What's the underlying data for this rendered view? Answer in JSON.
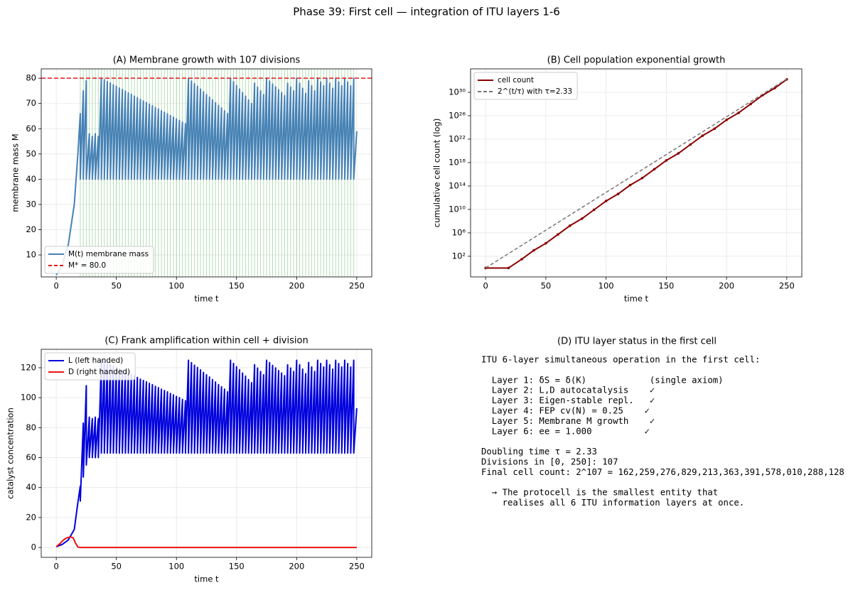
{
  "title": "Phase 39: First cell — integration of ITU layers 1-6",
  "chart_data": [
    {
      "type": "line",
      "title": "(A) Membrane growth with 107 divisions",
      "xlabel": "time t",
      "ylabel": "membrane mass M",
      "xlim": [
        -12.5,
        262.5
      ],
      "ylim": [
        1.3,
        83.7
      ],
      "xticks": [
        0,
        50,
        100,
        150,
        200,
        250
      ],
      "yticks": [
        10,
        20,
        30,
        40,
        50,
        60,
        70,
        80
      ],
      "grid": true,
      "legend": "lower left",
      "division_line_color": "#2ca02c",
      "series": [
        {
          "name": "M(t) membrane mass",
          "color": "#4682b4",
          "x": [
            0,
            5,
            10,
            15,
            18,
            20,
            20,
            22.5,
            22.5,
            25,
            25,
            27.5,
            27.5,
            30,
            30,
            32.5,
            32.5,
            35,
            35,
            37.5,
            37.5,
            40,
            40,
            42.5,
            42.5,
            45,
            45,
            47.5,
            47.5,
            50,
            50,
            52.5,
            52.5,
            55,
            55,
            57.5,
            57.5,
            60,
            60,
            62.5,
            62.5,
            65,
            65,
            67.5,
            67.5,
            70,
            70,
            72.5,
            72.5,
            75,
            75,
            77.5,
            77.5,
            80,
            80,
            82.5,
            82.5,
            85,
            85,
            87.5,
            87.5,
            90,
            90,
            92.5,
            92.5,
            95,
            95,
            97.5,
            97.5,
            100,
            100,
            102.5,
            102.5,
            105,
            105,
            107.5,
            107.5,
            110,
            110,
            112.5,
            112.5,
            115,
            115,
            117.5,
            117.5,
            120,
            120,
            122.5,
            122.5,
            125,
            125,
            127.5,
            127.5,
            130,
            130,
            132.5,
            132.5,
            135,
            135,
            137.5,
            137.5,
            140,
            140,
            142.5,
            142.5,
            145,
            145,
            147.5,
            147.5,
            150,
            150,
            152.5,
            152.5,
            155,
            155,
            157.5,
            157.5,
            160,
            160,
            162.5,
            162.5,
            165,
            165,
            167.5,
            167.5,
            170,
            170,
            172.5,
            172.5,
            175,
            175,
            177.5,
            177.5,
            180,
            180,
            182.5,
            182.5,
            185,
            185,
            187.5,
            187.5,
            190,
            190,
            192.5,
            192.5,
            195,
            195,
            197.5,
            197.5,
            200,
            200,
            202.5,
            202.5,
            205,
            205,
            207.5,
            207.5,
            210,
            210,
            212.5,
            212.5,
            215,
            215,
            217.5,
            217.5,
            220,
            220,
            222.5,
            222.5,
            225,
            225,
            227.5,
            227.5,
            230,
            230,
            232.5,
            232.5,
            235,
            235,
            237.5,
            237.5,
            240,
            240,
            242.5,
            242.5,
            245,
            245,
            247.5,
            247.5,
            250
          ],
          "values": [
            2,
            6,
            14,
            30,
            50,
            66,
            40,
            75,
            40,
            79,
            40,
            58,
            40,
            57,
            40,
            58,
            40,
            57,
            40,
            80,
            40,
            79.4,
            40,
            78.7,
            40,
            78.1,
            40,
            77.4,
            40,
            76.8,
            40,
            76.1,
            40,
            75.5,
            40,
            74.9,
            40,
            74.2,
            40,
            73.6,
            40,
            72.9,
            40,
            72.3,
            40,
            71.6,
            40,
            71.0,
            40,
            70.4,
            40,
            69.7,
            40,
            69.1,
            40,
            68.4,
            40,
            67.8,
            40,
            67.1,
            40,
            66.5,
            40,
            65.9,
            40,
            65.2,
            40,
            64.6,
            40,
            63.9,
            40,
            63.3,
            40,
            62.6,
            40,
            62.0,
            40,
            80,
            40,
            78.9,
            40,
            77.8,
            40,
            76.8,
            40,
            75.7,
            40,
            74.6,
            40,
            73.5,
            40,
            72.5,
            40,
            71.4,
            40,
            70.3,
            40,
            69.2,
            40,
            68.2,
            40,
            67.1,
            40,
            66.0,
            40,
            80,
            40,
            78.6,
            40,
            77.1,
            40,
            75.7,
            40,
            74.3,
            40,
            72.9,
            40,
            71.4,
            40,
            70.0,
            40,
            78,
            40,
            76.5,
            40,
            75,
            40,
            73.5,
            40,
            80,
            40,
            78.9,
            40,
            77.7,
            40,
            76.6,
            40,
            75.4,
            40,
            74.3,
            40,
            73.1,
            40,
            78,
            40,
            76.5,
            40,
            75,
            40,
            80,
            40,
            78,
            40,
            76,
            40,
            74,
            40,
            79,
            40,
            77,
            40,
            75,
            40,
            80,
            40,
            78.5,
            40,
            77,
            40,
            80,
            40,
            78,
            40,
            76,
            40,
            80,
            40,
            78.5,
            40,
            77,
            40,
            80,
            40,
            78.5,
            40,
            77,
            40,
            80,
            40,
            59
          ]
        }
      ],
      "hlines": [
        {
          "name": "M* = 80.0",
          "y": 80,
          "color": "#e31a1c",
          "linestyle": "--"
        }
      ]
    },
    {
      "type": "line",
      "title": "(B) Cell population exponential growth",
      "xlabel": "time t",
      "ylabel": "cumulative cell count (log)",
      "xlim": [
        -12.5,
        262.5
      ],
      "ylim": [
        0.03,
        1e+34
      ],
      "yscale": "log",
      "xticks": [
        0,
        50,
        100,
        150,
        200,
        250
      ],
      "yticks": [
        {
          "value": 100,
          "label": "10²"
        },
        {
          "value": 1000000.0,
          "label": "10⁶"
        },
        {
          "value": 10000000000.0,
          "label": "10¹⁰"
        },
        {
          "value": 100000000000000.0,
          "label": "10¹⁴"
        },
        {
          "value": 1e+18,
          "label": "10¹⁸"
        },
        {
          "value": 1e+22,
          "label": "10²²"
        },
        {
          "value": 1e+26,
          "label": "10²⁶"
        },
        {
          "value": 1e+30,
          "label": "10³⁰"
        }
      ],
      "grid": true,
      "legend": "upper left",
      "series": [
        {
          "name": "cell count",
          "color": "#8b0000",
          "marker": true,
          "x": [
            0,
            19,
            30,
            40,
            50,
            60,
            70,
            80,
            90,
            100,
            110,
            120,
            130,
            140,
            150,
            160,
            170,
            180,
            190,
            200,
            210,
            220,
            230,
            240,
            250
          ],
          "values": [
            1,
            1,
            32,
            1024,
            16384,
            524288,
            16800000.0,
            268000000.0,
            8590000000.0,
            275000000000.0,
            4400000000000.0,
            141000000000000.0,
            2250000000000000.0,
            7.21e+16,
            2.31e+18,
            3.69e+19,
            1.18e+21,
            3.78e+22,
            6.04e+23,
            1.93e+25,
            3.09e+26,
            9.9e+27,
            3.17e+29,
            5.07e+30,
            1.62e+32
          ]
        },
        {
          "name": "2^(t/τ) with τ=2.33",
          "color": "#777777",
          "linestyle": "--",
          "x": [
            0,
            250
          ],
          "values": [
            1,
            1.9e+32
          ]
        }
      ]
    },
    {
      "type": "line",
      "title": "(C) Frank amplification within cell + division",
      "xlabel": "time t",
      "ylabel": "catalyst concentration",
      "xlim": [
        -12.5,
        262.5
      ],
      "ylim": [
        -6.6,
        132.3
      ],
      "xticks": [
        0,
        50,
        100,
        150,
        200,
        250
      ],
      "yticks": [
        0,
        20,
        40,
        60,
        80,
        100,
        120
      ],
      "grid": true,
      "legend": "upper left",
      "series": [
        {
          "name": "L (left handed)",
          "color": "#0000dd",
          "x": [
            0,
            5,
            10,
            15,
            18,
            20,
            20,
            22.5,
            22.5,
            25,
            25,
            27.5,
            27.5,
            30,
            30,
            32.5,
            32.5,
            35,
            35,
            37.5,
            37.5,
            40,
            40,
            42.5,
            42.5,
            45,
            45,
            47.5,
            47.5,
            50,
            50,
            52.5,
            52.5,
            55,
            55,
            57.5,
            57.5,
            60,
            60,
            62.5,
            62.5,
            65,
            65,
            67.5,
            67.5,
            70,
            70,
            72.5,
            72.5,
            75,
            75,
            77.5,
            77.5,
            80,
            80,
            82.5,
            82.5,
            85,
            85,
            87.5,
            87.5,
            90,
            90,
            92.5,
            92.5,
            95,
            95,
            97.5,
            97.5,
            100,
            100,
            102.5,
            102.5,
            105,
            105,
            107.5,
            107.5,
            110,
            110,
            112.5,
            112.5,
            115,
            115,
            117.5,
            117.5,
            120,
            120,
            122.5,
            122.5,
            125,
            125,
            127.5,
            127.5,
            130,
            130,
            132.5,
            132.5,
            135,
            135,
            137.5,
            137.5,
            140,
            140,
            142.5,
            142.5,
            145,
            145,
            147.5,
            147.5,
            150,
            150,
            152.5,
            152.5,
            155,
            155,
            157.5,
            157.5,
            160,
            160,
            162.5,
            162.5,
            165,
            165,
            167.5,
            167.5,
            170,
            170,
            172.5,
            172.5,
            175,
            175,
            177.5,
            177.5,
            180,
            180,
            182.5,
            182.5,
            185,
            185,
            187.5,
            187.5,
            190,
            190,
            192.5,
            192.5,
            195,
            195,
            197.5,
            197.5,
            200,
            200,
            202.5,
            202.5,
            205,
            205,
            207.5,
            207.5,
            210,
            210,
            212.5,
            212.5,
            215,
            215,
            217.5,
            217.5,
            220,
            220,
            222.5,
            222.5,
            225,
            225,
            227.5,
            227.5,
            230,
            230,
            232.5,
            232.5,
            235,
            235,
            237.5,
            237.5,
            240,
            240,
            242.5,
            242.5,
            245,
            245,
            247.5,
            247.5,
            250
          ],
          "values": [
            0.5,
            2,
            5,
            12,
            30,
            41,
            31,
            83,
            47,
            108,
            55,
            87,
            60,
            86,
            60,
            87,
            60,
            86,
            60,
            125,
            63,
            124.1,
            63,
            123.1,
            63,
            122.2,
            63,
            121.1,
            63,
            120.2,
            63,
            119.2,
            63,
            118.3,
            63,
            117.4,
            63,
            116.3,
            63,
            115.4,
            63,
            114.4,
            63,
            113.5,
            63,
            112.4,
            63,
            111.5,
            63,
            110.6,
            63,
            109.6,
            63,
            108.7,
            63,
            107.6,
            63,
            106.7,
            63,
            105.7,
            63,
            104.8,
            63,
            103.9,
            63,
            102.8,
            63,
            101.9,
            63,
            100.9,
            63,
            100.0,
            63,
            98.9,
            63,
            98.0,
            63,
            125,
            63,
            123.4,
            63,
            121.7,
            63,
            120.2,
            63,
            118.6,
            63,
            116.9,
            63,
            115.3,
            63,
            113.8,
            63,
            112.1,
            63,
            110.5,
            63,
            108.8,
            63,
            107.3,
            63,
            105.7,
            63,
            104.0,
            63,
            125,
            63,
            122.9,
            63,
            120.7,
            63,
            118.6,
            63,
            116.5,
            63,
            114.4,
            63,
            112.1,
            63,
            110.0,
            63,
            122,
            63,
            119.8,
            63,
            117.5,
            63,
            115.3,
            63,
            125,
            63,
            123.4,
            63,
            121.6,
            63,
            119.9,
            63,
            118.1,
            63,
            116.5,
            63,
            114.7,
            63,
            122,
            63,
            119.8,
            63,
            117.5,
            63,
            125,
            63,
            122,
            63,
            119,
            63,
            116,
            63,
            123.5,
            63,
            120.5,
            63,
            117.5,
            63,
            125,
            63,
            122.8,
            63,
            120.5,
            63,
            125,
            63,
            122,
            63,
            119,
            63,
            125,
            63,
            122.8,
            63,
            120.5,
            63,
            125,
            63,
            122.8,
            63,
            120.5,
            63,
            125,
            63,
            93
          ]
        },
        {
          "name": "D (right handed)",
          "color": "#ee1111",
          "x": [
            0,
            3,
            6,
            9,
            12,
            14,
            16,
            18,
            20,
            250
          ],
          "values": [
            0.5,
            2.5,
            5,
            6.5,
            7,
            6.5,
            3,
            0.3,
            0,
            0
          ]
        }
      ]
    },
    {
      "type": "text",
      "title": "(D) ITU layer status in the first cell",
      "paragraphs": [
        [
          "ITU 6-layer simultaneous operation in the first cell:"
        ],
        [
          "  Layer 1: δS = δ(K)            (single axiom)",
          "  Layer 2: L,D autocatalysis    ✓",
          "  Layer 3: Eigen-stable repl.   ✓",
          "  Layer 4: FEP cv(N) = 0.25    ✓",
          "  Layer 5: Membrane M growth    ✓",
          "  Layer 6: ee = 1.000          ✓"
        ],
        [
          "Doubling time τ = 2.33",
          "Divisions in [0, 250]: 107",
          "Final cell count: 2^107 = 162,259,276,829,213,363,391,578,010,288,128"
        ],
        [
          "  → The protocell is the smallest entity that",
          "    realises all 6 ITU information layers at once."
        ]
      ]
    }
  ]
}
